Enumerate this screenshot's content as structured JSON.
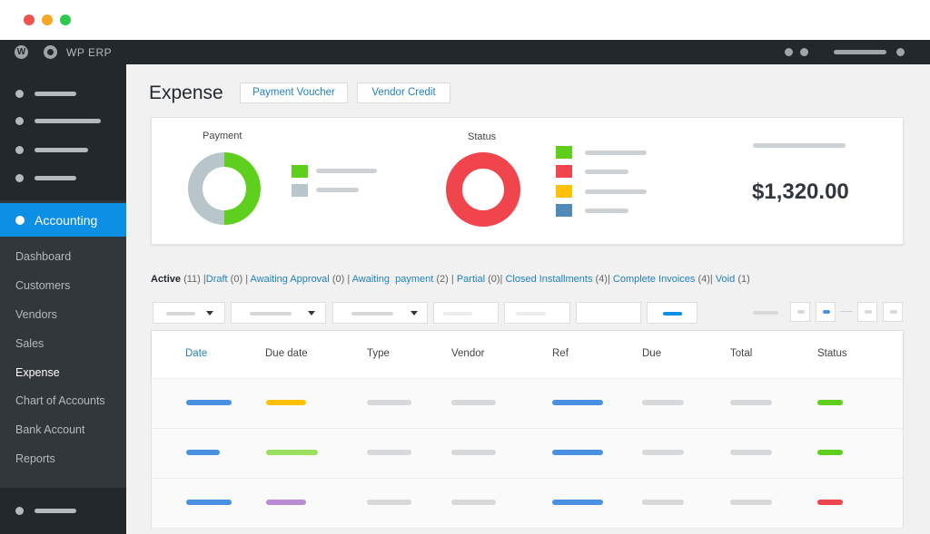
{
  "window": {
    "controls": [
      {
        "name": "close",
        "color": "#f0524f"
      },
      {
        "name": "minimize",
        "color": "#f5a623"
      },
      {
        "name": "maximize",
        "color": "#2dc84d"
      }
    ]
  },
  "adminbar": {
    "wp_icon": "wordpress-icon",
    "erp_icon": "erp-logo-icon",
    "brand": "WP ERP"
  },
  "sidebar": {
    "active_item": "Accounting",
    "submenu": [
      "Dashboard",
      "Customers",
      "Vendors",
      "Sales",
      "Expense",
      "Chart of Accounts",
      "Bank Account",
      "Reports"
    ],
    "current_submenu": "Expense"
  },
  "header": {
    "title": "Expense",
    "buttons": [
      "Payment Voucher",
      "Vendor Credit"
    ]
  },
  "summary": {
    "payment": {
      "title": "Payment",
      "segments": [
        {
          "color": "#5fcf1e",
          "fraction": 0.5
        },
        {
          "color": "#b8c6cc",
          "fraction": 0.5
        }
      ]
    },
    "status": {
      "title": "Status",
      "segments": [
        {
          "color": "#f0454d",
          "fraction": 1.0
        }
      ],
      "legend_colors": [
        "#5fcf1e",
        "#f0454d",
        "#ffc107",
        "#4f8bb8"
      ]
    },
    "amount": "$1,320.00"
  },
  "filters": {
    "current": "Active",
    "current_count": "(11)",
    "links": [
      {
        "label": "Draft",
        "count": "(0)"
      },
      {
        "label": "Awaiting Approval",
        "count": "(0)"
      },
      {
        "label": "Awaiting  payment",
        "count": "(2)"
      },
      {
        "label": "Partial",
        "count": "(0)"
      },
      {
        "label": "Closed Installments",
        "count": "(4)"
      },
      {
        "label": "Complete Invoices",
        "count": "(4)"
      },
      {
        "label": "Void",
        "count": "(1)"
      }
    ]
  },
  "table": {
    "columns": [
      "Date",
      "Due date",
      "Type",
      "Vendor",
      "Ref",
      "Due",
      "Total",
      "Status"
    ],
    "sorted_column": "Date",
    "rows": [
      {
        "date_color": "#4a90e2",
        "due_color": "#ffc107",
        "status_color": "#5fcf1e"
      },
      {
        "date_color": "#4a90e2",
        "due_color": "#9be060",
        "status_color": "#5fcf1e"
      },
      {
        "date_color": "#4a90e2",
        "due_color": "#b98bd6",
        "status_color": "#f0454d"
      }
    ],
    "colors": {
      "placeholder": "#d6d8da",
      "link": "#4a90e2"
    }
  },
  "colors": {
    "accent": "#0d8fe4",
    "sidebar": "#32373c",
    "adminbar": "#23282d"
  }
}
